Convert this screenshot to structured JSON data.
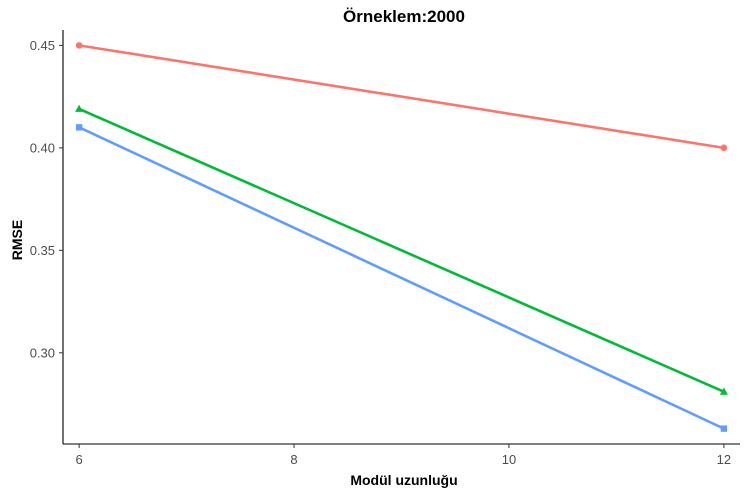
{
  "chart_data": {
    "type": "line",
    "title": "Örneklem:2000",
    "xlabel": "Modül uzunluğu",
    "ylabel": "RMSE",
    "x": [
      6,
      12
    ],
    "xticks": [
      6,
      8,
      10,
      12
    ],
    "yticks": [
      0.3,
      0.35,
      0.4,
      0.45
    ],
    "ytick_labels": [
      "0.30",
      "0.35",
      "0.40",
      "0.45"
    ],
    "xlim": [
      5.85,
      12.15
    ],
    "ylim": [
      0.2555,
      0.4575
    ],
    "grid": false,
    "series": [
      {
        "values": [
          0.45,
          0.4
        ],
        "color": "#f8766d",
        "marker": "circle"
      },
      {
        "values": [
          0.419,
          0.281
        ],
        "color": "#00ba38",
        "marker": "triangle"
      },
      {
        "values": [
          0.41,
          0.263
        ],
        "color": "#619cff",
        "marker": "square"
      }
    ]
  }
}
